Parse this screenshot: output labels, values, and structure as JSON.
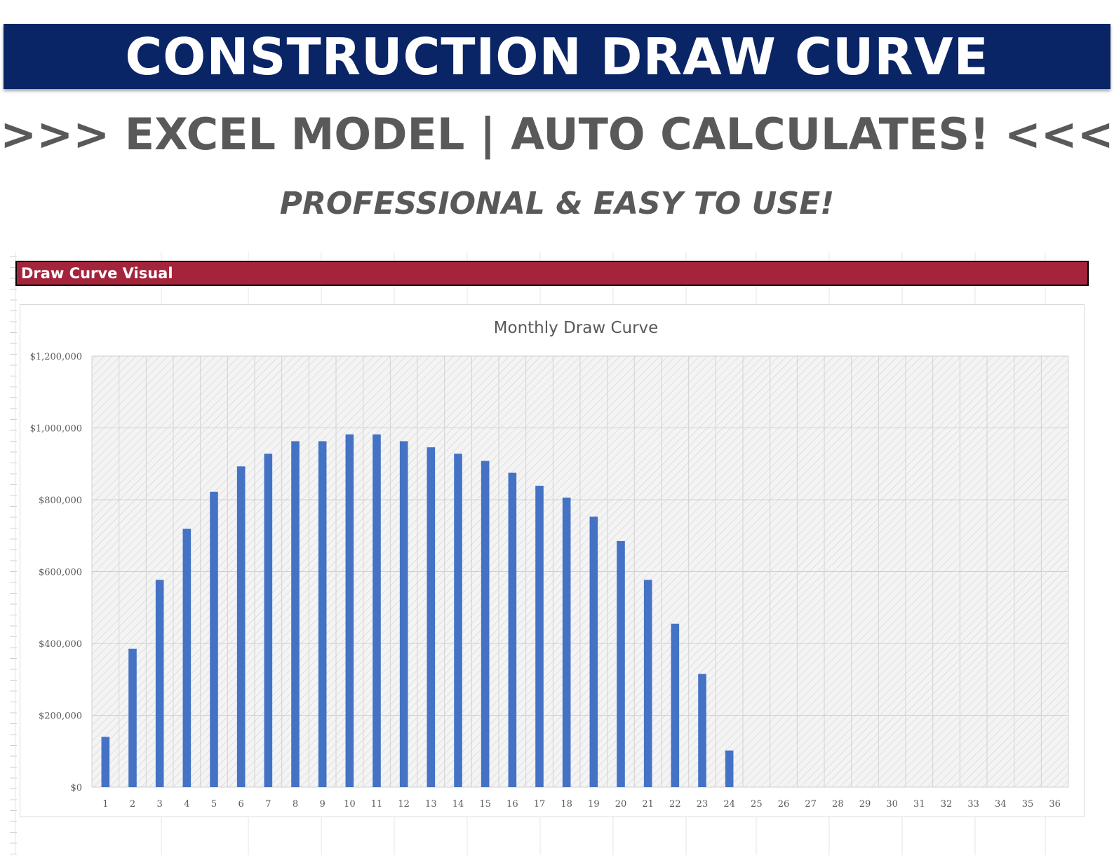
{
  "header": {
    "title": "CONSTRUCTION DRAW CURVE",
    "subtitle": ">>> EXCEL MODEL | AUTO CALCULATES! <<<",
    "tagline": "PROFESSIONAL & EASY TO USE!"
  },
  "section": {
    "label": "Draw Curve Visual"
  },
  "colors": {
    "banner": "#0a2566",
    "section_bar": "#a4243b",
    "bar": "#4472c4",
    "text_gray": "#595959"
  },
  "chart_data": {
    "type": "bar",
    "title": "Monthly Draw Curve",
    "xlabel": "",
    "ylabel": "",
    "ylim": [
      0,
      1200000
    ],
    "yticks": [
      0,
      200000,
      400000,
      600000,
      800000,
      1000000,
      1200000
    ],
    "ytick_labels": [
      "$0",
      "$200,000",
      "$400,000",
      "$600,000",
      "$800,000",
      "$1,000,000",
      "$1,200,000"
    ],
    "categories": [
      "1",
      "2",
      "3",
      "4",
      "5",
      "6",
      "7",
      "8",
      "9",
      "10",
      "11",
      "12",
      "13",
      "14",
      "15",
      "16",
      "17",
      "18",
      "19",
      "20",
      "21",
      "22",
      "23",
      "24",
      "25",
      "26",
      "27",
      "28",
      "29",
      "30",
      "31",
      "32",
      "33",
      "34",
      "35",
      "36"
    ],
    "values": [
      140000,
      385000,
      577000,
      719000,
      822000,
      893000,
      928000,
      963000,
      963000,
      982000,
      982000,
      963000,
      946000,
      928000,
      908000,
      875000,
      839000,
      806000,
      753000,
      685000,
      577000,
      455000,
      315000,
      102000,
      0,
      0,
      0,
      0,
      0,
      0,
      0,
      0,
      0,
      0,
      0,
      0
    ],
    "grid": true,
    "legend": "none"
  }
}
